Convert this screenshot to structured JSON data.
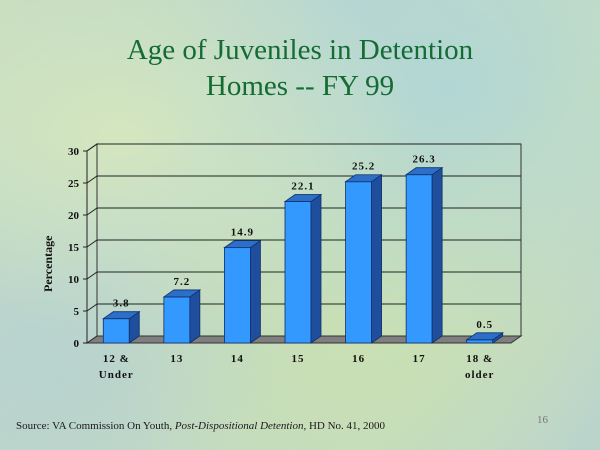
{
  "title_line1": "Age of Juveniles in Detention",
  "title_line2": "Homes -- FY 99",
  "source": {
    "prefix": "Source: VA Commission On Youth, ",
    "italic": "Post-Dispositional Detention",
    "suffix": ", HD No. 41, 2000"
  },
  "page_number": "16",
  "chart_data": {
    "type": "bar",
    "categories": [
      [
        "12 &",
        "Under"
      ],
      [
        "13"
      ],
      [
        "14"
      ],
      [
        "15"
      ],
      [
        "16"
      ],
      [
        "17"
      ],
      [
        "18 &",
        "older"
      ]
    ],
    "values": [
      3.8,
      7.2,
      14.9,
      22.1,
      25.2,
      26.3,
      0.5
    ],
    "value_labels": [
      "3.8",
      "7.2",
      "14.9",
      "22.1",
      "25.2",
      "26.3",
      "0.5"
    ],
    "ylabel": "Percentage",
    "xlabel": "",
    "ylim": [
      0,
      30
    ],
    "yticks": [
      0,
      5,
      10,
      15,
      20,
      25,
      30
    ],
    "grid": true,
    "style": "3d",
    "bar_color": "#3399ff",
    "bar_side_color": "#1f4f9c",
    "bar_top_color": "#2b6fc9"
  }
}
